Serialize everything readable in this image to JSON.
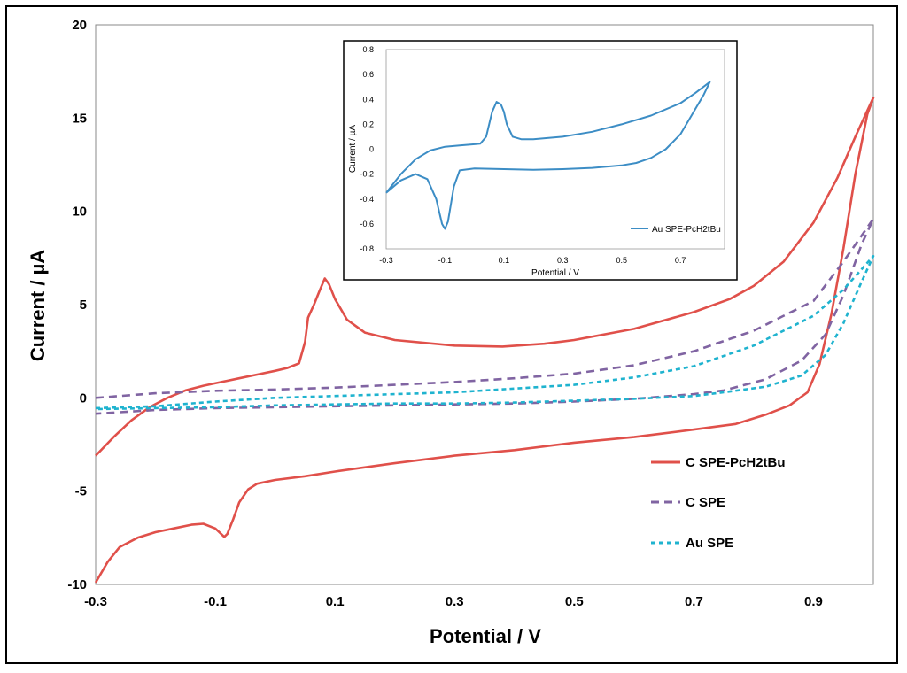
{
  "chart_data": [
    {
      "type": "line",
      "title": "",
      "xlabel": "Potential / V",
      "ylabel": "Current / µA",
      "xlim": [
        -0.3,
        1.0
      ],
      "ylim": [
        -10,
        20
      ],
      "x_ticks": [
        "-0.3",
        "-0.1",
        "0.1",
        "0.3",
        "0.5",
        "0.7",
        "0.9"
      ],
      "x_tick_values": [
        -0.3,
        -0.1,
        0.1,
        0.3,
        0.5,
        0.7,
        0.9
      ],
      "y_ticks": [
        "20",
        "15",
        "10",
        "5",
        "0",
        "-5",
        "-10"
      ],
      "y_tick_values": [
        20,
        15,
        10,
        5,
        0,
        -5,
        -10
      ],
      "grid": false,
      "legend_position": "bottom-right",
      "series": [
        {
          "name": "C SPE-PcH2tBu",
          "color": "#e0504a",
          "dash": "solid",
          "points": [
            [
              -0.3,
              -3.1
            ],
            [
              -0.27,
              -2.1
            ],
            [
              -0.24,
              -1.2
            ],
            [
              -0.21,
              -0.5
            ],
            [
              -0.18,
              0.0
            ],
            [
              -0.15,
              0.4
            ],
            [
              -0.12,
              0.65
            ],
            [
              -0.09,
              0.85
            ],
            [
              -0.06,
              1.05
            ],
            [
              -0.03,
              1.25
            ],
            [
              0.0,
              1.45
            ],
            [
              0.02,
              1.6
            ],
            [
              0.04,
              1.85
            ],
            [
              0.05,
              3.0
            ],
            [
              0.055,
              4.3
            ],
            [
              0.065,
              5.0
            ],
            [
              0.075,
              5.8
            ],
            [
              0.083,
              6.4
            ],
            [
              0.09,
              6.1
            ],
            [
              0.1,
              5.3
            ],
            [
              0.12,
              4.2
            ],
            [
              0.15,
              3.5
            ],
            [
              0.2,
              3.1
            ],
            [
              0.3,
              2.8
            ],
            [
              0.38,
              2.75
            ],
            [
              0.45,
              2.9
            ],
            [
              0.5,
              3.1
            ],
            [
              0.6,
              3.7
            ],
            [
              0.7,
              4.6
            ],
            [
              0.76,
              5.3
            ],
            [
              0.8,
              6.0
            ],
            [
              0.85,
              7.3
            ],
            [
              0.9,
              9.4
            ],
            [
              0.94,
              11.8
            ],
            [
              0.97,
              14.0
            ],
            [
              1.0,
              16.1
            ],
            [
              0.99,
              15.2
            ],
            [
              0.97,
              12.0
            ],
            [
              0.95,
              8.0
            ],
            [
              0.93,
              4.5
            ],
            [
              0.91,
              1.8
            ],
            [
              0.89,
              0.3
            ],
            [
              0.86,
              -0.4
            ],
            [
              0.82,
              -0.9
            ],
            [
              0.77,
              -1.4
            ],
            [
              0.7,
              -1.7
            ],
            [
              0.6,
              -2.1
            ],
            [
              0.5,
              -2.4
            ],
            [
              0.4,
              -2.8
            ],
            [
              0.3,
              -3.1
            ],
            [
              0.2,
              -3.5
            ],
            [
              0.1,
              -3.95
            ],
            [
              0.05,
              -4.2
            ],
            [
              0.0,
              -4.4
            ],
            [
              -0.03,
              -4.6
            ],
            [
              -0.045,
              -4.9
            ],
            [
              -0.06,
              -5.6
            ],
            [
              -0.07,
              -6.5
            ],
            [
              -0.08,
              -7.3
            ],
            [
              -0.085,
              -7.45
            ],
            [
              -0.1,
              -7.0
            ],
            [
              -0.12,
              -6.75
            ],
            [
              -0.14,
              -6.8
            ],
            [
              -0.17,
              -7.0
            ],
            [
              -0.2,
              -7.2
            ],
            [
              -0.23,
              -7.5
            ],
            [
              -0.26,
              -8.0
            ],
            [
              -0.28,
              -8.8
            ],
            [
              -0.3,
              -9.9
            ]
          ]
        },
        {
          "name": "C SPE",
          "color": "#8064a2",
          "dash": "dashed",
          "points": [
            [
              -0.3,
              0.0
            ],
            [
              -0.2,
              0.25
            ],
            [
              -0.1,
              0.38
            ],
            [
              0.0,
              0.45
            ],
            [
              0.1,
              0.55
            ],
            [
              0.2,
              0.7
            ],
            [
              0.3,
              0.85
            ],
            [
              0.4,
              1.05
            ],
            [
              0.5,
              1.3
            ],
            [
              0.6,
              1.75
            ],
            [
              0.7,
              2.5
            ],
            [
              0.8,
              3.6
            ],
            [
              0.9,
              5.2
            ],
            [
              0.95,
              7.3
            ],
            [
              1.0,
              9.6
            ],
            [
              0.98,
              8.2
            ],
            [
              0.95,
              5.5
            ],
            [
              0.92,
              3.4
            ],
            [
              0.88,
              2.0
            ],
            [
              0.82,
              1.0
            ],
            [
              0.75,
              0.4
            ],
            [
              0.7,
              0.2
            ],
            [
              0.6,
              -0.05
            ],
            [
              0.5,
              -0.2
            ],
            [
              0.4,
              -0.3
            ],
            [
              0.3,
              -0.35
            ],
            [
              0.2,
              -0.4
            ],
            [
              0.1,
              -0.45
            ],
            [
              0.0,
              -0.5
            ],
            [
              -0.1,
              -0.55
            ],
            [
              -0.2,
              -0.65
            ],
            [
              -0.3,
              -0.85
            ]
          ]
        },
        {
          "name": "Au SPE",
          "color": "#1fb3cf",
          "dash": "dashed",
          "points": [
            [
              -0.3,
              -0.55
            ],
            [
              -0.2,
              -0.45
            ],
            [
              -0.1,
              -0.2
            ],
            [
              0.0,
              0.0
            ],
            [
              0.1,
              0.1
            ],
            [
              0.2,
              0.2
            ],
            [
              0.3,
              0.3
            ],
            [
              0.4,
              0.5
            ],
            [
              0.5,
              0.7
            ],
            [
              0.6,
              1.1
            ],
            [
              0.7,
              1.7
            ],
            [
              0.8,
              2.8
            ],
            [
              0.9,
              4.4
            ],
            [
              0.95,
              5.8
            ],
            [
              1.0,
              7.6
            ],
            [
              0.98,
              6.2
            ],
            [
              0.95,
              4.0
            ],
            [
              0.92,
              2.3
            ],
            [
              0.88,
              1.2
            ],
            [
              0.82,
              0.6
            ],
            [
              0.75,
              0.3
            ],
            [
              0.7,
              0.1
            ],
            [
              0.6,
              -0.05
            ],
            [
              0.5,
              -0.15
            ],
            [
              0.4,
              -0.25
            ],
            [
              0.3,
              -0.3
            ],
            [
              0.2,
              -0.3
            ],
            [
              0.1,
              -0.35
            ],
            [
              0.0,
              -0.4
            ],
            [
              -0.1,
              -0.5
            ],
            [
              -0.2,
              -0.55
            ],
            [
              -0.3,
              -0.6
            ]
          ]
        }
      ]
    },
    {
      "type": "line",
      "title": "",
      "xlabel": "Potential / V",
      "ylabel": "Current / µA",
      "xlim": [
        -0.3,
        0.85
      ],
      "ylim": [
        -0.8,
        0.8
      ],
      "x_ticks": [
        "-0.3",
        "-0.1",
        "0.1",
        "0.3",
        "0.5",
        "0.7"
      ],
      "x_tick_values": [
        -0.3,
        -0.1,
        0.1,
        0.3,
        0.5,
        0.7
      ],
      "y_ticks": [
        "0.8",
        "0.6",
        "0.4",
        "0.2",
        "0",
        "-0.2",
        "-0.4",
        "-0.6",
        "-0.8"
      ],
      "y_tick_values": [
        0.8,
        0.6,
        0.4,
        0.2,
        0,
        -0.2,
        -0.4,
        -0.6,
        -0.8
      ],
      "grid": false,
      "legend_position": "bottom-right",
      "series": [
        {
          "name": "Au SPE-PcH2tBu",
          "color": "#3c8dc5",
          "dash": "solid",
          "points": [
            [
              -0.3,
              -0.35
            ],
            [
              -0.25,
              -0.2
            ],
            [
              -0.2,
              -0.08
            ],
            [
              -0.15,
              -0.01
            ],
            [
              -0.1,
              0.02
            ],
            [
              -0.05,
              0.03
            ],
            [
              0.0,
              0.04
            ],
            [
              0.02,
              0.045
            ],
            [
              0.04,
              0.1
            ],
            [
              0.06,
              0.3
            ],
            [
              0.075,
              0.38
            ],
            [
              0.09,
              0.36
            ],
            [
              0.1,
              0.3
            ],
            [
              0.11,
              0.2
            ],
            [
              0.13,
              0.1
            ],
            [
              0.16,
              0.08
            ],
            [
              0.2,
              0.08
            ],
            [
              0.3,
              0.1
            ],
            [
              0.4,
              0.14
            ],
            [
              0.5,
              0.2
            ],
            [
              0.6,
              0.27
            ],
            [
              0.7,
              0.37
            ],
            [
              0.75,
              0.45
            ],
            [
              0.8,
              0.54
            ],
            [
              0.78,
              0.44
            ],
            [
              0.74,
              0.28
            ],
            [
              0.7,
              0.12
            ],
            [
              0.65,
              0.0
            ],
            [
              0.6,
              -0.07
            ],
            [
              0.55,
              -0.11
            ],
            [
              0.5,
              -0.13
            ],
            [
              0.4,
              -0.15
            ],
            [
              0.3,
              -0.16
            ],
            [
              0.2,
              -0.165
            ],
            [
              0.1,
              -0.16
            ],
            [
              0.0,
              -0.155
            ],
            [
              -0.05,
              -0.17
            ],
            [
              -0.07,
              -0.3
            ],
            [
              -0.09,
              -0.58
            ],
            [
              -0.1,
              -0.64
            ],
            [
              -0.11,
              -0.6
            ],
            [
              -0.13,
              -0.4
            ],
            [
              -0.16,
              -0.24
            ],
            [
              -0.2,
              -0.2
            ],
            [
              -0.25,
              -0.25
            ],
            [
              -0.3,
              -0.35
            ]
          ]
        }
      ]
    }
  ]
}
